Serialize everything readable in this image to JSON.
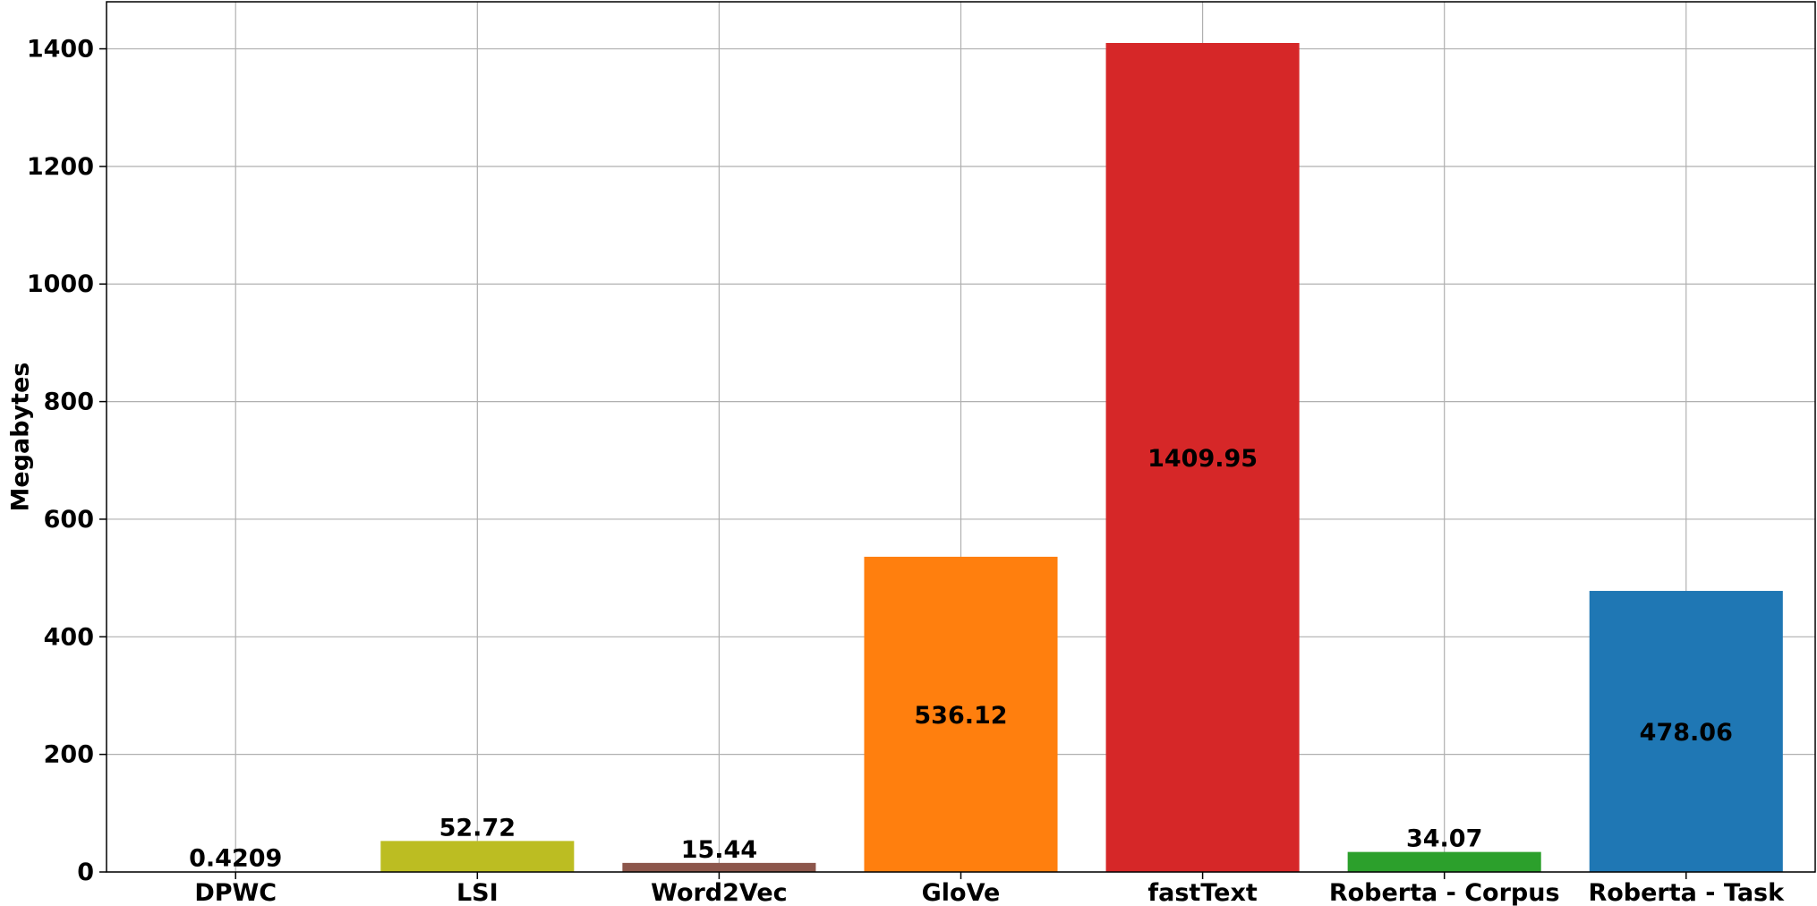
{
  "chart_data": {
    "type": "bar",
    "title": "",
    "xlabel": "",
    "ylabel": "Megabytes",
    "categories": [
      "DPWC",
      "LSI",
      "Word2Vec",
      "GloVe",
      "fastText",
      "Roberta - Corpus",
      "Roberta - Task"
    ],
    "values": [
      0.4209,
      52.72,
      15.44,
      536.12,
      1409.95,
      34.07,
      478.06
    ],
    "data_labels": [
      "0.4209",
      "52.72",
      "15.44",
      "536.12",
      "1409.95",
      "34.07",
      "478.06"
    ],
    "label_placement": [
      "above",
      "above",
      "above",
      "center",
      "center",
      "above",
      "center"
    ],
    "colors": [
      "#1f77b4",
      "#bcbd22",
      "#8c564b",
      "#ff7f0e",
      "#d62728",
      "#2ca02c",
      "#1f77b4"
    ],
    "ylim": [
      0,
      1480
    ],
    "yticks": [
      0,
      200,
      400,
      600,
      800,
      1000,
      1200,
      1400
    ],
    "grid": true,
    "legend": "none"
  }
}
